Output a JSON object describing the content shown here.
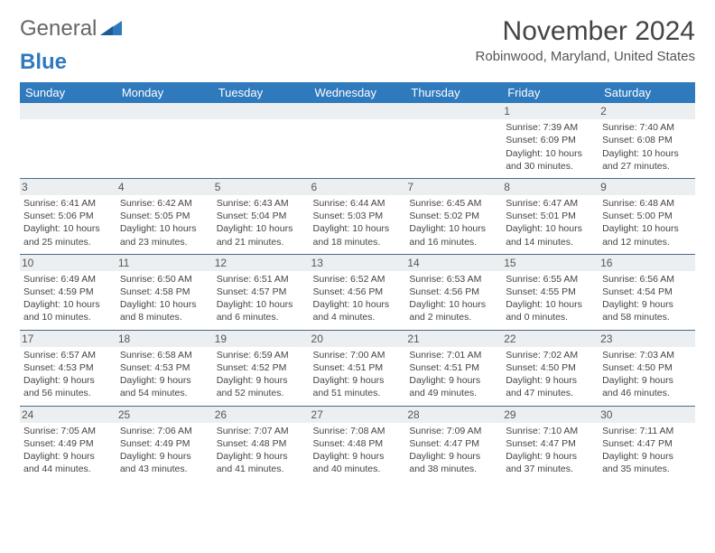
{
  "brand": {
    "part1": "General",
    "part2": "Blue"
  },
  "title": "November 2024",
  "location": "Robinwood, Maryland, United States",
  "colors": {
    "header_bg": "#2f79bd",
    "header_text": "#ffffff",
    "spacer_bg": "#eceff1",
    "cell_border": "#4a6a86",
    "text": "#444444"
  },
  "dayHeaders": [
    "Sunday",
    "Monday",
    "Tuesday",
    "Wednesday",
    "Thursday",
    "Friday",
    "Saturday"
  ],
  "weeks": [
    [
      null,
      null,
      null,
      null,
      null,
      {
        "num": "1",
        "sunrise": "Sunrise: 7:39 AM",
        "sunset": "Sunset: 6:09 PM",
        "daylight": "Daylight: 10 hours and 30 minutes."
      },
      {
        "num": "2",
        "sunrise": "Sunrise: 7:40 AM",
        "sunset": "Sunset: 6:08 PM",
        "daylight": "Daylight: 10 hours and 27 minutes."
      }
    ],
    [
      {
        "num": "3",
        "sunrise": "Sunrise: 6:41 AM",
        "sunset": "Sunset: 5:06 PM",
        "daylight": "Daylight: 10 hours and 25 minutes."
      },
      {
        "num": "4",
        "sunrise": "Sunrise: 6:42 AM",
        "sunset": "Sunset: 5:05 PM",
        "daylight": "Daylight: 10 hours and 23 minutes."
      },
      {
        "num": "5",
        "sunrise": "Sunrise: 6:43 AM",
        "sunset": "Sunset: 5:04 PM",
        "daylight": "Daylight: 10 hours and 21 minutes."
      },
      {
        "num": "6",
        "sunrise": "Sunrise: 6:44 AM",
        "sunset": "Sunset: 5:03 PM",
        "daylight": "Daylight: 10 hours and 18 minutes."
      },
      {
        "num": "7",
        "sunrise": "Sunrise: 6:45 AM",
        "sunset": "Sunset: 5:02 PM",
        "daylight": "Daylight: 10 hours and 16 minutes."
      },
      {
        "num": "8",
        "sunrise": "Sunrise: 6:47 AM",
        "sunset": "Sunset: 5:01 PM",
        "daylight": "Daylight: 10 hours and 14 minutes."
      },
      {
        "num": "9",
        "sunrise": "Sunrise: 6:48 AM",
        "sunset": "Sunset: 5:00 PM",
        "daylight": "Daylight: 10 hours and 12 minutes."
      }
    ],
    [
      {
        "num": "10",
        "sunrise": "Sunrise: 6:49 AM",
        "sunset": "Sunset: 4:59 PM",
        "daylight": "Daylight: 10 hours and 10 minutes."
      },
      {
        "num": "11",
        "sunrise": "Sunrise: 6:50 AM",
        "sunset": "Sunset: 4:58 PM",
        "daylight": "Daylight: 10 hours and 8 minutes."
      },
      {
        "num": "12",
        "sunrise": "Sunrise: 6:51 AM",
        "sunset": "Sunset: 4:57 PM",
        "daylight": "Daylight: 10 hours and 6 minutes."
      },
      {
        "num": "13",
        "sunrise": "Sunrise: 6:52 AM",
        "sunset": "Sunset: 4:56 PM",
        "daylight": "Daylight: 10 hours and 4 minutes."
      },
      {
        "num": "14",
        "sunrise": "Sunrise: 6:53 AM",
        "sunset": "Sunset: 4:56 PM",
        "daylight": "Daylight: 10 hours and 2 minutes."
      },
      {
        "num": "15",
        "sunrise": "Sunrise: 6:55 AM",
        "sunset": "Sunset: 4:55 PM",
        "daylight": "Daylight: 10 hours and 0 minutes."
      },
      {
        "num": "16",
        "sunrise": "Sunrise: 6:56 AM",
        "sunset": "Sunset: 4:54 PM",
        "daylight": "Daylight: 9 hours and 58 minutes."
      }
    ],
    [
      {
        "num": "17",
        "sunrise": "Sunrise: 6:57 AM",
        "sunset": "Sunset: 4:53 PM",
        "daylight": "Daylight: 9 hours and 56 minutes."
      },
      {
        "num": "18",
        "sunrise": "Sunrise: 6:58 AM",
        "sunset": "Sunset: 4:53 PM",
        "daylight": "Daylight: 9 hours and 54 minutes."
      },
      {
        "num": "19",
        "sunrise": "Sunrise: 6:59 AM",
        "sunset": "Sunset: 4:52 PM",
        "daylight": "Daylight: 9 hours and 52 minutes."
      },
      {
        "num": "20",
        "sunrise": "Sunrise: 7:00 AM",
        "sunset": "Sunset: 4:51 PM",
        "daylight": "Daylight: 9 hours and 51 minutes."
      },
      {
        "num": "21",
        "sunrise": "Sunrise: 7:01 AM",
        "sunset": "Sunset: 4:51 PM",
        "daylight": "Daylight: 9 hours and 49 minutes."
      },
      {
        "num": "22",
        "sunrise": "Sunrise: 7:02 AM",
        "sunset": "Sunset: 4:50 PM",
        "daylight": "Daylight: 9 hours and 47 minutes."
      },
      {
        "num": "23",
        "sunrise": "Sunrise: 7:03 AM",
        "sunset": "Sunset: 4:50 PM",
        "daylight": "Daylight: 9 hours and 46 minutes."
      }
    ],
    [
      {
        "num": "24",
        "sunrise": "Sunrise: 7:05 AM",
        "sunset": "Sunset: 4:49 PM",
        "daylight": "Daylight: 9 hours and 44 minutes."
      },
      {
        "num": "25",
        "sunrise": "Sunrise: 7:06 AM",
        "sunset": "Sunset: 4:49 PM",
        "daylight": "Daylight: 9 hours and 43 minutes."
      },
      {
        "num": "26",
        "sunrise": "Sunrise: 7:07 AM",
        "sunset": "Sunset: 4:48 PM",
        "daylight": "Daylight: 9 hours and 41 minutes."
      },
      {
        "num": "27",
        "sunrise": "Sunrise: 7:08 AM",
        "sunset": "Sunset: 4:48 PM",
        "daylight": "Daylight: 9 hours and 40 minutes."
      },
      {
        "num": "28",
        "sunrise": "Sunrise: 7:09 AM",
        "sunset": "Sunset: 4:47 PM",
        "daylight": "Daylight: 9 hours and 38 minutes."
      },
      {
        "num": "29",
        "sunrise": "Sunrise: 7:10 AM",
        "sunset": "Sunset: 4:47 PM",
        "daylight": "Daylight: 9 hours and 37 minutes."
      },
      {
        "num": "30",
        "sunrise": "Sunrise: 7:11 AM",
        "sunset": "Sunset: 4:47 PM",
        "daylight": "Daylight: 9 hours and 35 minutes."
      }
    ]
  ]
}
